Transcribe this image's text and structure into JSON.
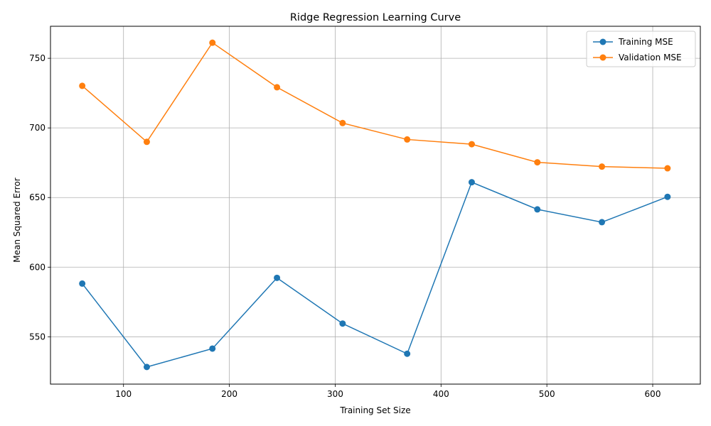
{
  "chart_data": {
    "type": "line",
    "title": "Ridge Regression Learning Curve",
    "xlabel": "Training Set Size",
    "ylabel": "Mean Squared Error",
    "xlim": [
      31,
      645
    ],
    "ylim": [
      516,
      773
    ],
    "xticks": [
      100,
      200,
      300,
      400,
      500,
      600
    ],
    "yticks": [
      550,
      600,
      650,
      700,
      750
    ],
    "grid": true,
    "legend_position": "top-right",
    "x": [
      61,
      122,
      184,
      245,
      307,
      368,
      429,
      491,
      552,
      614
    ],
    "series": [
      {
        "name": "Training MSE",
        "color": "#1f77b4",
        "marker": "circle",
        "values": [
          588.2,
          528.3,
          541.5,
          592.3,
          559.5,
          537.8,
          661.0,
          641.5,
          632.3,
          650.5
        ]
      },
      {
        "name": "Validation MSE",
        "color": "#ff7f0e",
        "marker": "circle",
        "values": [
          730.2,
          690.0,
          761.2,
          729.2,
          703.5,
          691.7,
          688.3,
          675.3,
          672.2,
          671.0
        ]
      }
    ]
  }
}
